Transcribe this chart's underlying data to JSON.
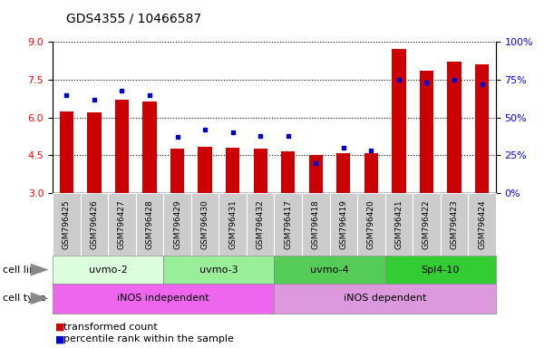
{
  "title": "GDS4355 / 10466587",
  "samples": [
    "GSM796425",
    "GSM796426",
    "GSM796427",
    "GSM796428",
    "GSM796429",
    "GSM796430",
    "GSM796431",
    "GSM796432",
    "GSM796417",
    "GSM796418",
    "GSM796419",
    "GSM796420",
    "GSM796421",
    "GSM796422",
    "GSM796423",
    "GSM796424"
  ],
  "transformed_count": [
    6.25,
    6.2,
    6.7,
    6.65,
    4.75,
    4.85,
    4.8,
    4.78,
    4.65,
    4.5,
    4.6,
    4.58,
    8.7,
    7.85,
    8.2,
    8.1
  ],
  "percentile_rank": [
    65,
    62,
    68,
    65,
    37,
    42,
    40,
    38,
    38,
    20,
    30,
    28,
    75,
    73,
    75,
    72
  ],
  "bar_color": "#cc0000",
  "dot_color": "#0000cc",
  "ylim_left": [
    3,
    9
  ],
  "ylim_right": [
    0,
    100
  ],
  "yticks_left": [
    3,
    4.5,
    6,
    7.5,
    9
  ],
  "yticks_right": [
    0,
    25,
    50,
    75,
    100
  ],
  "cell_lines": [
    {
      "label": "uvmo-2",
      "start": 0,
      "end": 3,
      "color": "#ddfedd"
    },
    {
      "label": "uvmo-3",
      "start": 4,
      "end": 7,
      "color": "#99ee99"
    },
    {
      "label": "uvmo-4",
      "start": 8,
      "end": 11,
      "color": "#55cc55"
    },
    {
      "label": "Spl4-10",
      "start": 12,
      "end": 15,
      "color": "#33cc33"
    }
  ],
  "cell_types": [
    {
      "label": "iNOS independent",
      "start": 0,
      "end": 7,
      "color": "#ee66ee"
    },
    {
      "label": "iNOS dependent",
      "start": 8,
      "end": 15,
      "color": "#dd99dd"
    }
  ],
  "legend_bar_label": "transformed count",
  "legend_dot_label": "percentile rank within the sample",
  "bar_width": 0.5
}
